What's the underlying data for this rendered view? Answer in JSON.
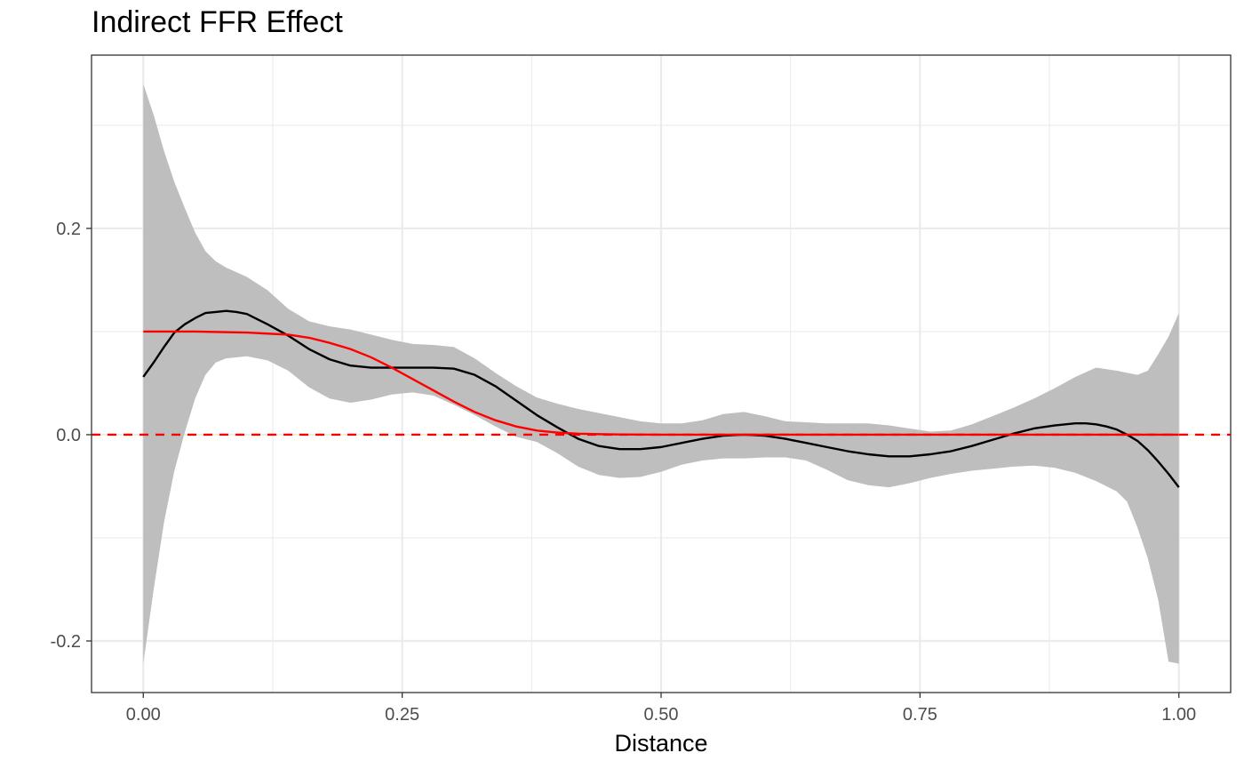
{
  "chart_data": {
    "type": "line",
    "title": "Indirect FFR Effect",
    "xlabel": "Distance",
    "ylabel": "",
    "xlim": [
      -0.05,
      1.05
    ],
    "ylim": [
      -0.25,
      0.368
    ],
    "x_ticks": [
      0.0,
      0.25,
      0.5,
      0.75,
      1.0
    ],
    "x_tick_labels": [
      "0.00",
      "0.25",
      "0.50",
      "0.75",
      "1.00"
    ],
    "y_ticks": [
      -0.2,
      0.0,
      0.2
    ],
    "y_tick_labels": [
      "-0.2",
      "0.0",
      "0.2"
    ],
    "grid": true,
    "colors": {
      "estimate": "#000000",
      "truth": "#ff0000",
      "ribbon": "#bebebe",
      "reference": "#ff0000",
      "grid": "#ebebeb"
    },
    "reference_line": {
      "y": 0.0,
      "style": "dashed"
    },
    "series": [
      {
        "style": "ribbon",
        "x": [
          0.0,
          0.01,
          0.02,
          0.03,
          0.04,
          0.05,
          0.06,
          0.07,
          0.08,
          0.1,
          0.12,
          0.14,
          0.16,
          0.18,
          0.2,
          0.22,
          0.24,
          0.26,
          0.28,
          0.3,
          0.32,
          0.34,
          0.36,
          0.38,
          0.4,
          0.42,
          0.44,
          0.46,
          0.48,
          0.5,
          0.52,
          0.54,
          0.56,
          0.58,
          0.6,
          0.62,
          0.64,
          0.66,
          0.68,
          0.7,
          0.72,
          0.74,
          0.76,
          0.78,
          0.8,
          0.82,
          0.84,
          0.86,
          0.88,
          0.9,
          0.92,
          0.94,
          0.95,
          0.96,
          0.97,
          0.98,
          0.99,
          1.0
        ],
        "lower": [
          -0.222,
          -0.15,
          -0.085,
          -0.035,
          0.002,
          0.035,
          0.058,
          0.07,
          0.074,
          0.076,
          0.072,
          0.062,
          0.046,
          0.035,
          0.031,
          0.034,
          0.039,
          0.041,
          0.038,
          0.029,
          0.019,
          0.008,
          -0.002,
          -0.007,
          -0.018,
          -0.031,
          -0.039,
          -0.042,
          -0.041,
          -0.036,
          -0.029,
          -0.025,
          -0.023,
          -0.023,
          -0.022,
          -0.022,
          -0.025,
          -0.034,
          -0.044,
          -0.049,
          -0.051,
          -0.047,
          -0.042,
          -0.038,
          -0.035,
          -0.033,
          -0.031,
          -0.03,
          -0.032,
          -0.037,
          -0.045,
          -0.055,
          -0.065,
          -0.09,
          -0.12,
          -0.16,
          -0.22,
          -0.222
        ],
        "upper": [
          0.34,
          0.31,
          0.275,
          0.245,
          0.22,
          0.196,
          0.178,
          0.168,
          0.162,
          0.153,
          0.14,
          0.122,
          0.11,
          0.105,
          0.102,
          0.097,
          0.092,
          0.088,
          0.087,
          0.085,
          0.074,
          0.06,
          0.047,
          0.036,
          0.03,
          0.025,
          0.021,
          0.017,
          0.013,
          0.011,
          0.011,
          0.014,
          0.02,
          0.022,
          0.018,
          0.013,
          0.012,
          0.011,
          0.011,
          0.011,
          0.009,
          0.006,
          0.003,
          0.004,
          0.01,
          0.018,
          0.026,
          0.035,
          0.045,
          0.056,
          0.065,
          0.062,
          0.06,
          0.058,
          0.062,
          0.078,
          0.095,
          0.118
        ]
      },
      {
        "style": "solid",
        "color": "#000000",
        "x": [
          0.0,
          0.01,
          0.02,
          0.03,
          0.04,
          0.05,
          0.06,
          0.07,
          0.08,
          0.09,
          0.1,
          0.12,
          0.14,
          0.16,
          0.18,
          0.2,
          0.22,
          0.24,
          0.26,
          0.28,
          0.3,
          0.32,
          0.34,
          0.36,
          0.38,
          0.4,
          0.42,
          0.44,
          0.46,
          0.48,
          0.5,
          0.52,
          0.54,
          0.56,
          0.58,
          0.6,
          0.62,
          0.64,
          0.66,
          0.68,
          0.7,
          0.72,
          0.74,
          0.76,
          0.78,
          0.8,
          0.82,
          0.84,
          0.86,
          0.88,
          0.9,
          0.91,
          0.92,
          0.93,
          0.94,
          0.95,
          0.96,
          0.97,
          0.98,
          0.99,
          1.0
        ],
        "y": [
          0.056,
          0.07,
          0.085,
          0.099,
          0.107,
          0.113,
          0.118,
          0.119,
          0.12,
          0.119,
          0.117,
          0.107,
          0.096,
          0.083,
          0.073,
          0.067,
          0.065,
          0.065,
          0.065,
          0.065,
          0.064,
          0.058,
          0.047,
          0.033,
          0.019,
          0.007,
          -0.004,
          -0.011,
          -0.014,
          -0.014,
          -0.012,
          -0.008,
          -0.004,
          -0.001,
          0.0,
          -0.001,
          -0.004,
          -0.008,
          -0.012,
          -0.016,
          -0.019,
          -0.021,
          -0.021,
          -0.019,
          -0.016,
          -0.011,
          -0.005,
          0.001,
          0.006,
          0.009,
          0.011,
          0.011,
          0.01,
          0.008,
          0.005,
          0.0,
          -0.006,
          -0.015,
          -0.026,
          -0.038,
          -0.051
        ]
      },
      {
        "style": "solid",
        "color": "#ff0000",
        "x": [
          0.0,
          0.05,
          0.1,
          0.12,
          0.14,
          0.16,
          0.18,
          0.2,
          0.22,
          0.24,
          0.26,
          0.28,
          0.3,
          0.32,
          0.34,
          0.36,
          0.38,
          0.4,
          0.42,
          0.44,
          0.46,
          0.48,
          0.5,
          0.6,
          0.8,
          1.0
        ],
        "y": [
          0.1,
          0.1,
          0.099,
          0.098,
          0.097,
          0.094,
          0.089,
          0.083,
          0.075,
          0.065,
          0.054,
          0.043,
          0.032,
          0.022,
          0.014,
          0.008,
          0.004,
          0.002,
          0.001,
          0.0005,
          0.0002,
          0.0001,
          0.0,
          0.0,
          0.0,
          0.0
        ]
      }
    ]
  }
}
